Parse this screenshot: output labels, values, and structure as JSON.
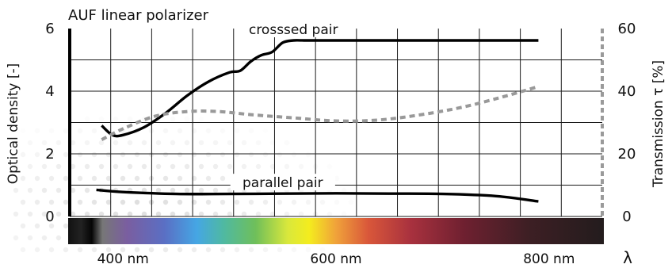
{
  "chart_data": {
    "type": "line",
    "title": "AUF linear polarizer",
    "xlabel": "λ",
    "ylabel_left": "Optical density [-]",
    "ylabel_right": "Transmission τ [%]",
    "x_ticks": [
      {
        "value": 400,
        "label": "400 nm"
      },
      {
        "value": 600,
        "label": "600 nm"
      },
      {
        "value": 800,
        "label": "800 nm"
      }
    ],
    "y_left_ticks": [
      {
        "value": 0,
        "label": "0"
      },
      {
        "value": 2,
        "label": "2"
      },
      {
        "value": 4,
        "label": "4"
      },
      {
        "value": 6,
        "label": "6"
      }
    ],
    "y_right_ticks": [
      {
        "value": 0,
        "label": "0"
      },
      {
        "value": 20,
        "label": "20"
      },
      {
        "value": 40,
        "label": "40"
      },
      {
        "value": 60,
        "label": "60"
      }
    ],
    "xlim": [
      350,
      850
    ],
    "ylim_left": [
      0,
      6
    ],
    "ylim_right": [
      0,
      60
    ],
    "grid": true,
    "series": [
      {
        "name": "crosssed pair",
        "axis": "left",
        "style": "solid",
        "color": "#000000",
        "x": [
          380,
          390,
          400,
          420,
          440,
          460,
          480,
          500,
          510,
          520,
          530,
          540,
          550,
          560,
          570,
          580,
          600,
          700,
          790
        ],
        "y": [
          2.9,
          2.6,
          2.6,
          2.85,
          3.3,
          3.85,
          4.3,
          4.6,
          4.65,
          4.95,
          5.15,
          5.25,
          5.55,
          5.62,
          5.62,
          5.62,
          5.62,
          5.62,
          5.62
        ]
      },
      {
        "name": "parallel pair",
        "axis": "left",
        "style": "solid",
        "color": "#000000",
        "x": [
          375,
          400,
          450,
          500,
          550,
          600,
          650,
          700,
          750,
          790
        ],
        "y": [
          0.85,
          0.78,
          0.72,
          0.72,
          0.73,
          0.74,
          0.73,
          0.72,
          0.65,
          0.48
        ]
      },
      {
        "name": "",
        "axis": "right",
        "style": "dashed",
        "color": "#999999",
        "x": [
          380,
          400,
          430,
          460,
          490,
          520,
          560,
          600,
          640,
          680,
          720,
          760,
          790
        ],
        "y": [
          24.5,
          28,
          32,
          33.5,
          33.5,
          32.5,
          31.5,
          30.5,
          30.8,
          32.5,
          35,
          38.5,
          41.5
        ]
      }
    ],
    "annotations": [
      {
        "text": "crosssed pair",
        "series_index": 0,
        "x": 560
      },
      {
        "text": "parallel pair",
        "series_index": 1,
        "x": 550
      }
    ],
    "spectrum_bar": {
      "stops": [
        {
          "x": 350,
          "color": "#111111"
        },
        {
          "x": 362,
          "color": "#222222"
        },
        {
          "x": 372,
          "color": "#050505"
        },
        {
          "x": 382,
          "color": "#777777"
        },
        {
          "x": 405,
          "color": "#7a5ea0"
        },
        {
          "x": 440,
          "color": "#5a6fc4"
        },
        {
          "x": 470,
          "color": "#45a6e4"
        },
        {
          "x": 495,
          "color": "#4fb9a2"
        },
        {
          "x": 525,
          "color": "#6fbf5a"
        },
        {
          "x": 555,
          "color": "#d9e83c"
        },
        {
          "x": 575,
          "color": "#f4ec1e"
        },
        {
          "x": 600,
          "color": "#f0a23a"
        },
        {
          "x": 630,
          "color": "#d9573a"
        },
        {
          "x": 670,
          "color": "#a8313e"
        },
        {
          "x": 720,
          "color": "#6e2030"
        },
        {
          "x": 780,
          "color": "#3d1f24"
        },
        {
          "x": 850,
          "color": "#231c1d"
        }
      ]
    }
  }
}
